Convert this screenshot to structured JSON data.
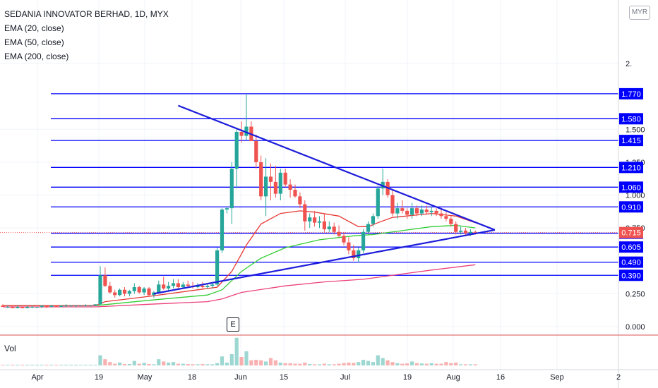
{
  "legend": {
    "title": "SEDANIA INNOVATOR BERHAD, 1D, MYX",
    "indicators": [
      "EMA (20, close)",
      "EMA (50, close)",
      "EMA (200, close)"
    ]
  },
  "volume_label": "Vol",
  "currency": "MYR",
  "earnings_marker": "E",
  "colors": {
    "up": "#26a69a",
    "down": "#ef5350",
    "level_line": "#0000ff",
    "ema20": "#e53935",
    "ema50": "#33cc33",
    "ema200": "#ec407a",
    "trendline": "#1d1ddb"
  },
  "chart_data": {
    "type": "candlestick",
    "title": "SEDANIA INNOVATOR BERHAD, 1D, MYX",
    "x_tick_labels": [
      "Apr",
      "19",
      "May",
      "18",
      "Jun",
      "15",
      "Jul",
      "19",
      "Aug",
      "16",
      "Sep",
      "2"
    ],
    "y_tick_labels": [
      "2.",
      "1.500",
      "1.250",
      "1.000",
      "0.750",
      "0.250",
      "0.000"
    ],
    "price_levels": [
      {
        "label": "1.770",
        "value": 1.77
      },
      {
        "label": "1.580",
        "value": 1.58
      },
      {
        "label": "1.415",
        "value": 1.415
      },
      {
        "label": "1.210",
        "value": 1.21
      },
      {
        "label": "1.060",
        "value": 1.06
      },
      {
        "label": "0.910",
        "value": 0.91
      },
      {
        "label": "0.710",
        "value": 0.71
      },
      {
        "label": "0.605",
        "value": 0.605
      },
      {
        "label": "0.490",
        "value": 0.49
      },
      {
        "label": "0.390",
        "value": 0.39
      }
    ],
    "last_price": {
      "label": "0.715",
      "value": 0.715
    },
    "ohlc": [
      [
        0.16,
        0.17,
        0.15,
        0.15
      ],
      [
        0.15,
        0.16,
        0.14,
        0.15
      ],
      [
        0.15,
        0.16,
        0.14,
        0.14
      ],
      [
        0.14,
        0.16,
        0.14,
        0.15
      ],
      [
        0.15,
        0.15,
        0.14,
        0.14
      ],
      [
        0.14,
        0.16,
        0.14,
        0.15
      ],
      [
        0.15,
        0.16,
        0.14,
        0.15
      ],
      [
        0.15,
        0.15,
        0.14,
        0.15
      ],
      [
        0.15,
        0.16,
        0.14,
        0.16
      ],
      [
        0.16,
        0.16,
        0.14,
        0.15
      ],
      [
        0.15,
        0.16,
        0.15,
        0.16
      ],
      [
        0.16,
        0.16,
        0.15,
        0.15
      ],
      [
        0.15,
        0.16,
        0.15,
        0.16
      ],
      [
        0.16,
        0.17,
        0.15,
        0.16
      ],
      [
        0.16,
        0.16,
        0.15,
        0.16
      ],
      [
        0.16,
        0.16,
        0.15,
        0.16
      ],
      [
        0.16,
        0.16,
        0.16,
        0.16
      ],
      [
        0.16,
        0.17,
        0.16,
        0.16
      ],
      [
        0.16,
        0.16,
        0.16,
        0.16
      ],
      [
        0.16,
        0.17,
        0.16,
        0.17
      ],
      [
        0.17,
        0.46,
        0.16,
        0.39
      ],
      [
        0.39,
        0.45,
        0.3,
        0.31
      ],
      [
        0.31,
        0.34,
        0.25,
        0.26
      ],
      [
        0.26,
        0.28,
        0.22,
        0.24
      ],
      [
        0.24,
        0.29,
        0.23,
        0.28
      ],
      [
        0.28,
        0.3,
        0.23,
        0.25
      ],
      [
        0.25,
        0.28,
        0.23,
        0.27
      ],
      [
        0.27,
        0.33,
        0.25,
        0.3
      ],
      [
        0.3,
        0.31,
        0.25,
        0.26
      ],
      [
        0.26,
        0.3,
        0.24,
        0.29
      ],
      [
        0.29,
        0.3,
        0.23,
        0.24
      ],
      [
        0.24,
        0.27,
        0.22,
        0.26
      ],
      [
        0.26,
        0.35,
        0.25,
        0.32
      ],
      [
        0.32,
        0.38,
        0.28,
        0.29
      ],
      [
        0.29,
        0.34,
        0.27,
        0.31
      ],
      [
        0.31,
        0.36,
        0.29,
        0.33
      ],
      [
        0.33,
        0.36,
        0.29,
        0.3
      ],
      [
        0.3,
        0.34,
        0.29,
        0.32
      ],
      [
        0.32,
        0.35,
        0.3,
        0.31
      ],
      [
        0.31,
        0.34,
        0.29,
        0.3
      ],
      [
        0.3,
        0.33,
        0.29,
        0.31
      ],
      [
        0.31,
        0.34,
        0.29,
        0.3
      ],
      [
        0.3,
        0.33,
        0.29,
        0.31
      ],
      [
        0.31,
        0.33,
        0.29,
        0.32
      ],
      [
        0.32,
        0.6,
        0.31,
        0.58
      ],
      [
        0.58,
        0.9,
        0.56,
        0.89
      ],
      [
        0.89,
        0.91,
        0.86,
        0.9
      ],
      [
        0.9,
        1.25,
        0.78,
        1.2
      ],
      [
        1.2,
        1.5,
        1.05,
        1.48
      ],
      [
        1.48,
        1.56,
        1.4,
        1.45
      ],
      [
        1.45,
        1.77,
        1.42,
        1.52
      ],
      [
        1.52,
        1.56,
        1.42,
        1.41
      ],
      [
        1.41,
        1.46,
        1.2,
        1.25
      ],
      [
        1.25,
        1.3,
        0.96,
        0.99
      ],
      [
        0.99,
        1.28,
        0.84,
        1.14
      ],
      [
        1.14,
        1.24,
        0.96,
        1.1
      ],
      [
        1.1,
        1.22,
        0.98,
        1.01
      ],
      [
        1.01,
        1.2,
        0.96,
        1.17
      ],
      [
        1.17,
        1.2,
        1.06,
        1.08
      ],
      [
        1.08,
        1.12,
        0.98,
        1.04
      ],
      [
        1.04,
        1.08,
        0.98,
        0.99
      ],
      [
        0.99,
        1.02,
        0.9,
        0.93
      ],
      [
        0.93,
        0.96,
        0.73,
        0.8
      ],
      [
        0.8,
        0.86,
        0.75,
        0.83
      ],
      [
        0.83,
        0.88,
        0.76,
        0.79
      ],
      [
        0.79,
        0.84,
        0.75,
        0.8
      ],
      [
        0.8,
        0.86,
        0.72,
        0.74
      ],
      [
        0.74,
        0.8,
        0.72,
        0.76
      ],
      [
        0.76,
        0.79,
        0.7,
        0.72
      ],
      [
        0.72,
        0.77,
        0.68,
        0.69
      ],
      [
        0.69,
        0.72,
        0.62,
        0.64
      ],
      [
        0.64,
        0.68,
        0.55,
        0.58
      ],
      [
        0.58,
        0.62,
        0.5,
        0.52
      ],
      [
        0.52,
        0.6,
        0.49,
        0.58
      ],
      [
        0.58,
        0.74,
        0.56,
        0.72
      ],
      [
        0.72,
        0.8,
        0.7,
        0.78
      ],
      [
        0.78,
        0.86,
        0.76,
        0.84
      ],
      [
        0.84,
        1.07,
        0.82,
        1.05
      ],
      [
        1.05,
        1.2,
        1.0,
        1.1
      ],
      [
        1.1,
        1.12,
        0.98,
        1.0
      ],
      [
        1.0,
        1.04,
        0.84,
        0.86
      ],
      [
        0.86,
        0.94,
        0.82,
        0.9
      ],
      [
        0.9,
        0.96,
        0.86,
        0.88
      ],
      [
        0.88,
        0.9,
        0.82,
        0.85
      ],
      [
        0.85,
        0.94,
        0.82,
        0.9
      ],
      [
        0.9,
        0.92,
        0.84,
        0.86
      ],
      [
        0.86,
        0.92,
        0.84,
        0.89
      ],
      [
        0.89,
        0.92,
        0.85,
        0.87
      ],
      [
        0.87,
        0.91,
        0.84,
        0.88
      ],
      [
        0.88,
        0.9,
        0.84,
        0.86
      ],
      [
        0.86,
        0.89,
        0.82,
        0.84
      ],
      [
        0.84,
        0.87,
        0.8,
        0.82
      ],
      [
        0.82,
        0.84,
        0.76,
        0.78
      ],
      [
        0.78,
        0.8,
        0.7,
        0.72
      ],
      [
        0.72,
        0.76,
        0.7,
        0.73
      ],
      [
        0.73,
        0.75,
        0.7,
        0.71
      ],
      [
        0.71,
        0.74,
        0.69,
        0.72
      ],
      [
        0.72,
        0.73,
        0.7,
        0.715
      ]
    ],
    "volume": [
      0.01,
      0.01,
      0.01,
      0.01,
      0.01,
      0.01,
      0.01,
      0.01,
      0.01,
      0.01,
      0.01,
      0.01,
      0.01,
      0.01,
      0.01,
      0.01,
      0.01,
      0.01,
      0.01,
      0.01,
      0.36,
      0.22,
      0.12,
      0.06,
      0.1,
      0.05,
      0.05,
      0.16,
      0.06,
      0.09,
      0.05,
      0.04,
      0.22,
      0.14,
      0.1,
      0.12,
      0.06,
      0.06,
      0.05,
      0.04,
      0.04,
      0.05,
      0.04,
      0.04,
      0.08,
      0.32,
      0.1,
      0.4,
      0.98,
      0.3,
      0.5,
      0.18,
      0.2,
      0.18,
      0.14,
      0.26,
      0.18,
      0.1,
      0.08,
      0.08,
      0.06,
      0.06,
      0.1,
      0.05,
      0.04,
      0.04,
      0.06,
      0.04,
      0.04,
      0.06,
      0.08,
      0.1,
      0.09,
      0.12,
      0.2,
      0.16,
      0.12,
      0.36,
      0.26,
      0.18,
      0.12,
      0.08,
      0.06,
      0.07,
      0.14,
      0.08,
      0.07,
      0.06,
      0.08,
      0.06,
      0.06,
      0.12,
      0.08,
      0.1,
      0.04,
      0.04,
      0.04,
      0.04
    ],
    "ema20": [
      [
        0,
        0.16
      ],
      [
        19,
        0.16
      ],
      [
        21,
        0.19
      ],
      [
        30,
        0.23
      ],
      [
        40,
        0.28
      ],
      [
        44,
        0.3
      ],
      [
        47,
        0.42
      ],
      [
        50,
        0.62
      ],
      [
        53,
        0.78
      ],
      [
        57,
        0.86
      ],
      [
        61,
        0.88
      ],
      [
        64,
        0.87
      ],
      [
        69,
        0.84
      ],
      [
        73,
        0.76
      ],
      [
        75,
        0.76
      ],
      [
        77,
        0.79
      ],
      [
        80,
        0.83
      ],
      [
        88,
        0.86
      ],
      [
        93,
        0.84
      ],
      [
        97,
        0.79
      ]
    ],
    "ema50": [
      [
        0,
        0.16
      ],
      [
        19,
        0.16
      ],
      [
        30,
        0.2
      ],
      [
        42,
        0.24
      ],
      [
        45,
        0.28
      ],
      [
        49,
        0.42
      ],
      [
        53,
        0.52
      ],
      [
        58,
        0.6
      ],
      [
        65,
        0.66
      ],
      [
        72,
        0.69
      ],
      [
        76,
        0.7
      ],
      [
        82,
        0.73
      ],
      [
        88,
        0.76
      ],
      [
        93,
        0.77
      ],
      [
        97,
        0.75
      ]
    ],
    "ema200": [
      [
        0,
        0.15
      ],
      [
        19,
        0.15
      ],
      [
        30,
        0.17
      ],
      [
        42,
        0.19
      ],
      [
        45,
        0.21
      ],
      [
        49,
        0.26
      ],
      [
        58,
        0.31
      ],
      [
        66,
        0.34
      ],
      [
        74,
        0.36
      ],
      [
        82,
        0.4
      ],
      [
        88,
        0.43
      ],
      [
        97,
        0.47
      ]
    ],
    "trendlines": [
      {
        "from": [
          36,
          1.68
        ],
        "to": [
          101,
          0.735
        ]
      },
      {
        "from": [
          31,
          0.25
        ],
        "to": [
          101,
          0.735
        ]
      }
    ]
  }
}
